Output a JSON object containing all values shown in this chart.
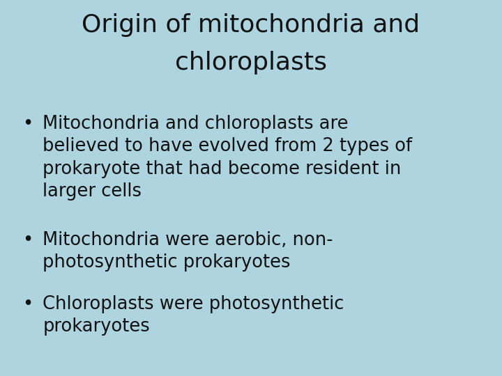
{
  "background_color": "#aed4e0",
  "title_line1": "Origin of mitochondria and",
  "title_line2": "chloroplasts",
  "title_fontsize": 26,
  "title_color": "#111111",
  "bullet_points": [
    "Mitochondria and chloroplasts are\nbelieved to have evolved from 2 types of\nprokaryote that had become resident in\nlarger cells",
    "Mitochondria were aerobic, non-\nphotosynthetic prokaryotes",
    "Chloroplasts were photosynthetic\nprokaryotes"
  ],
  "bullet_fontsize": 18.5,
  "bullet_color": "#111111",
  "bullet_symbol": "•",
  "fig_width": 7.2,
  "fig_height": 5.4,
  "dpi": 100
}
